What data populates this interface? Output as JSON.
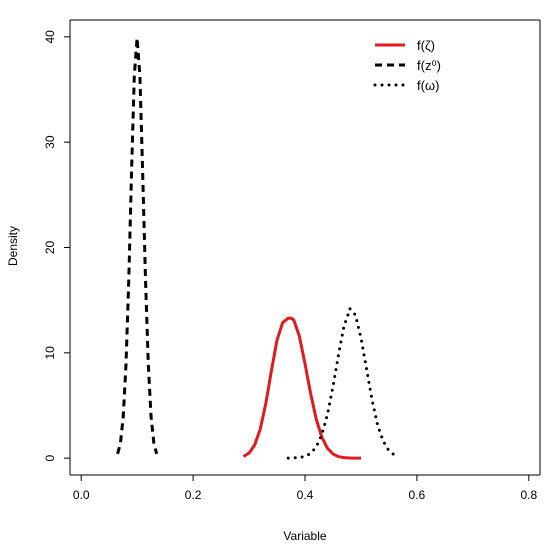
{
  "chart_data": {
    "type": "line",
    "title": "",
    "xlabel": "Variable",
    "ylabel": "Density",
    "xlim": [
      -0.02,
      0.82
    ],
    "ylim": [
      -1.6,
      41.6
    ],
    "x_ticks": [
      0.0,
      0.2,
      0.4,
      0.6,
      0.8
    ],
    "x_tick_labels": [
      "0.0",
      "0.2",
      "0.4",
      "0.6",
      "0.8"
    ],
    "y_ticks": [
      0,
      10,
      20,
      30,
      40
    ],
    "y_tick_labels": [
      "0",
      "10",
      "20",
      "30",
      "40"
    ],
    "grid": false,
    "legend_position": "top-right",
    "series": [
      {
        "name": "f(ζ)",
        "style": "solid",
        "color": "#e31a1c",
        "x": [
          0.29,
          0.3,
          0.31,
          0.32,
          0.33,
          0.34,
          0.35,
          0.36,
          0.37,
          0.375,
          0.38,
          0.39,
          0.4,
          0.41,
          0.42,
          0.43,
          0.44,
          0.45,
          0.46,
          0.47,
          0.48,
          0.49,
          0.5
        ],
        "y": [
          0.16,
          0.48,
          1.24,
          2.75,
          5.18,
          8.29,
          11.2,
          12.86,
          13.29,
          13.3,
          13.12,
          11.56,
          8.97,
          6.16,
          3.73,
          2.0,
          0.94,
          0.39,
          0.14,
          0.05,
          0.01,
          0.0,
          0.0
        ]
      },
      {
        "name": "f(z⁰)",
        "style": "dashed",
        "color": "#000000",
        "x": [
          0.065,
          0.07,
          0.075,
          0.08,
          0.085,
          0.09,
          0.095,
          0.1,
          0.105,
          0.11,
          0.115,
          0.12,
          0.125,
          0.13,
          0.135
        ],
        "y": [
          0.4,
          1.4,
          3.9,
          8.9,
          17.0,
          27.0,
          36.3,
          39.9,
          36.3,
          27.0,
          17.0,
          8.9,
          3.9,
          1.4,
          0.4
        ]
      },
      {
        "name": "f(ω)",
        "style": "dotted",
        "color": "#000000",
        "x": [
          0.37,
          0.38,
          0.39,
          0.4,
          0.41,
          0.42,
          0.43,
          0.44,
          0.45,
          0.46,
          0.47,
          0.475,
          0.48,
          0.49,
          0.5,
          0.51,
          0.52,
          0.53,
          0.54,
          0.55,
          0.56,
          0.565
        ],
        "y": [
          0.0,
          0.02,
          0.06,
          0.17,
          0.45,
          1.06,
          2.23,
          4.14,
          6.8,
          9.87,
          12.65,
          13.3,
          14.2,
          13.6,
          11.4,
          8.5,
          5.5,
          3.1,
          1.6,
          0.7,
          0.3,
          0.15
        ]
      }
    ]
  }
}
